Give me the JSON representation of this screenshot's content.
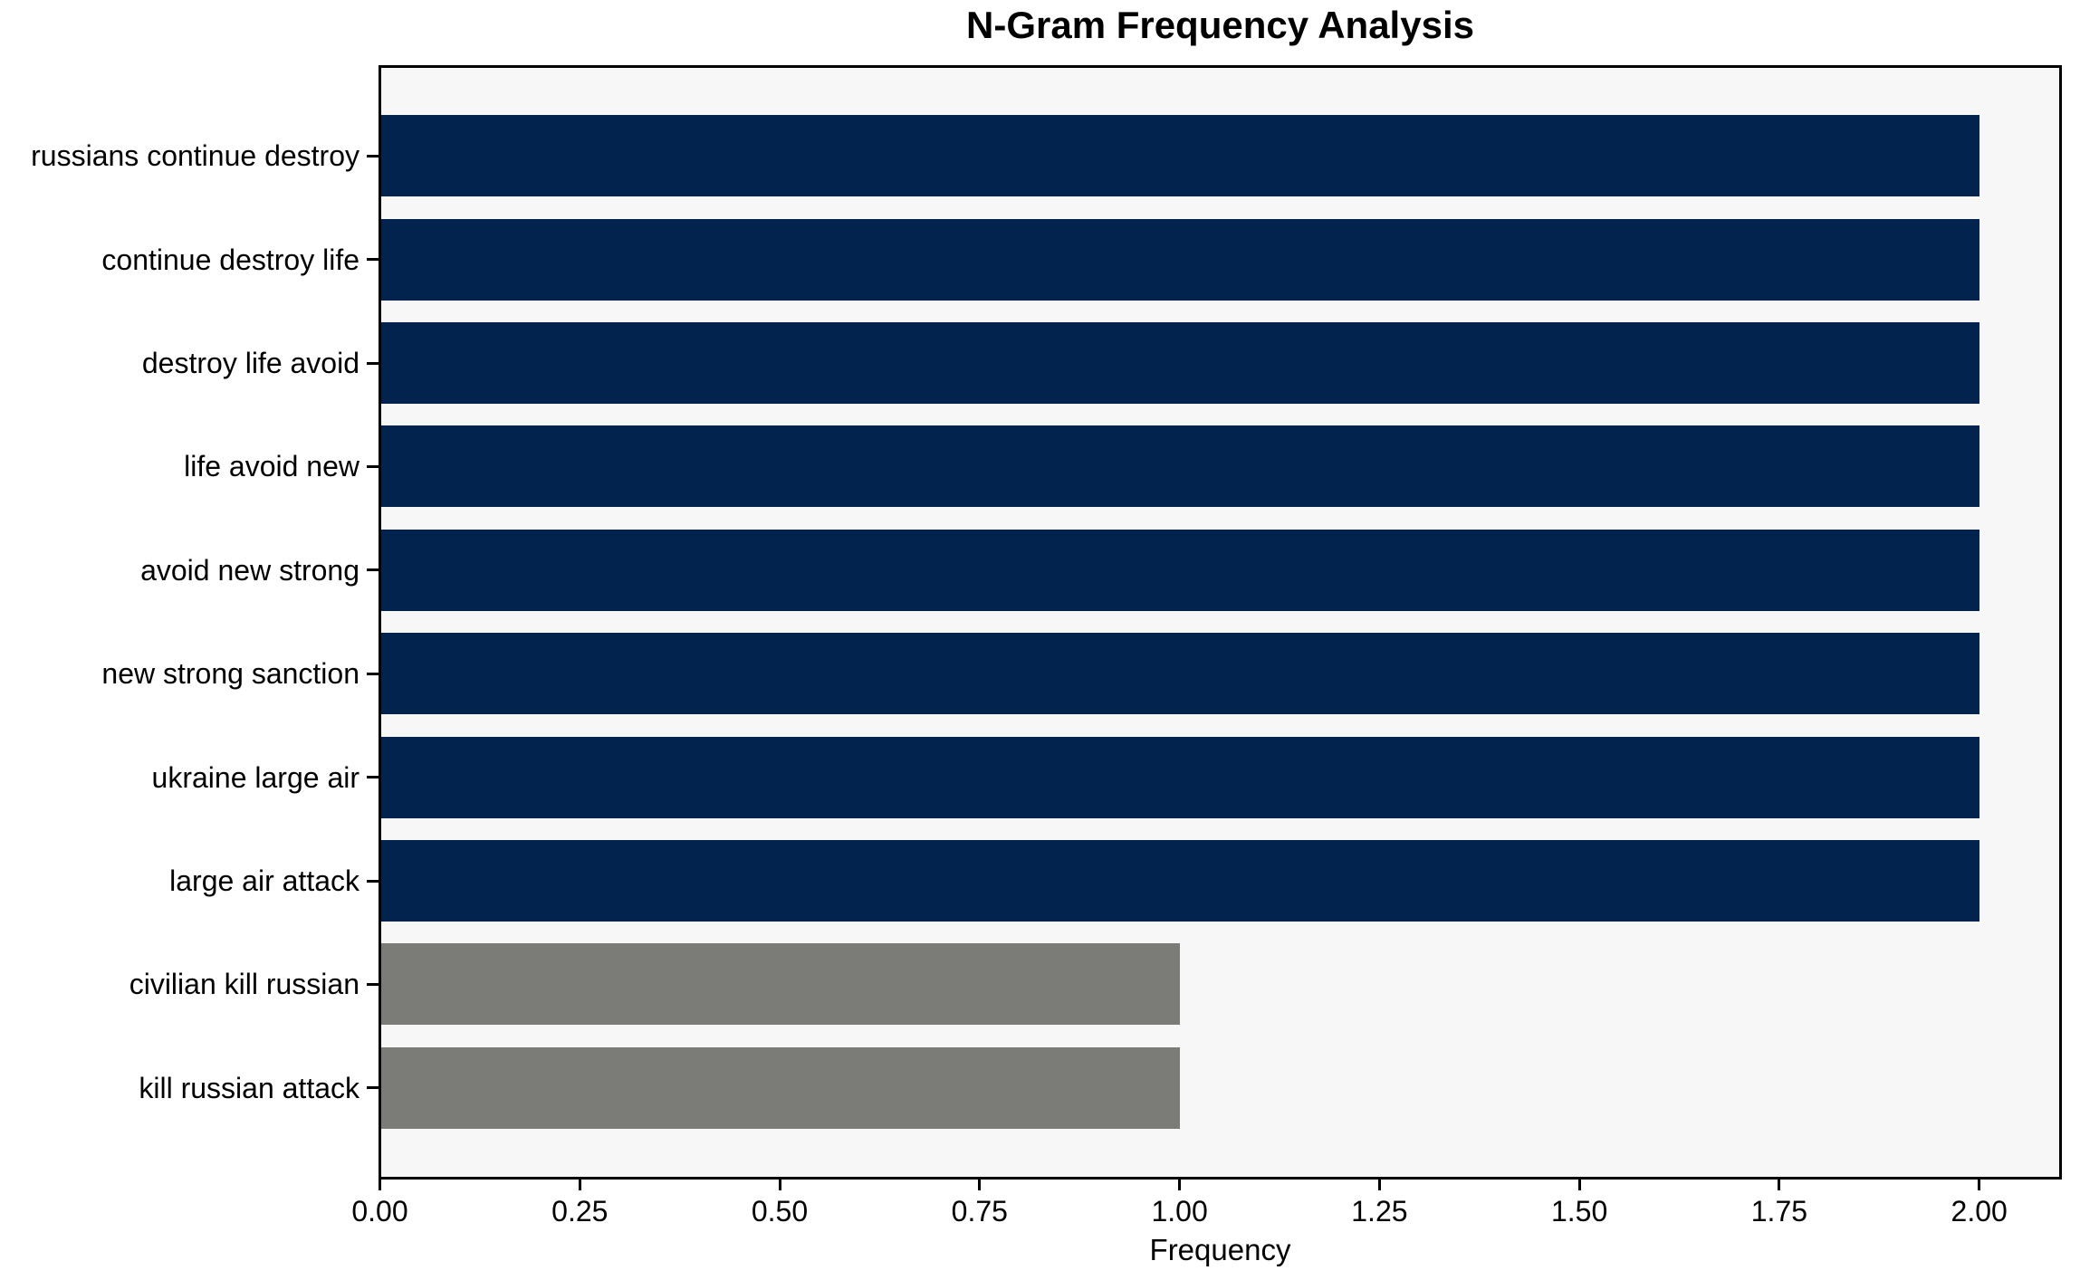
{
  "title": "N-Gram Frequency Analysis",
  "xlabel": "Frequency",
  "chart_data": {
    "type": "bar",
    "orientation": "horizontal",
    "title": "N-Gram Frequency Analysis",
    "xlabel": "Frequency",
    "ylabel": "",
    "categories": [
      "russians continue destroy",
      "continue destroy life",
      "destroy life avoid",
      "life avoid new",
      "avoid new strong",
      "new strong sanction",
      "ukraine large air",
      "large air attack",
      "civilian kill russian",
      "kill russian attack"
    ],
    "values": [
      2,
      2,
      2,
      2,
      2,
      2,
      2,
      2,
      1,
      1
    ],
    "bar_colors": [
      "#02234e",
      "#02234e",
      "#02234e",
      "#02234e",
      "#02234e",
      "#02234e",
      "#02234e",
      "#02234e",
      "#7b7b77",
      "#7b7b77"
    ],
    "xlim": [
      0,
      2.1
    ],
    "xticks": [
      "0.00",
      "0.25",
      "0.50",
      "0.75",
      "1.00",
      "1.25",
      "1.50",
      "1.75",
      "2.00"
    ],
    "xtick_values": [
      0,
      0.25,
      0.5,
      0.75,
      1.0,
      1.25,
      1.5,
      1.75,
      2.0
    ],
    "grid": false,
    "legend": "none",
    "colors": {
      "high_frequency_bar": "#02234e",
      "low_frequency_bar": "#7b7b77",
      "plot_background": "#f7f7f7",
      "figure_background": "#ffffff",
      "spine": "#000000",
      "text": "#000000"
    }
  }
}
